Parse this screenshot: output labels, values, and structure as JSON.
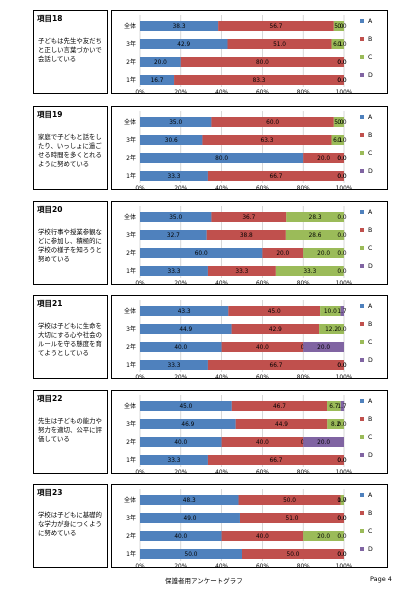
{
  "footer": {
    "title": "保護者用アンケートグラフ",
    "page": "Page 4"
  },
  "colors": {
    "A": "#4f81bd",
    "B": "#c0504d",
    "C": "#9bbb59",
    "D": "#8064a2"
  },
  "rows": [
    "全体",
    "3年",
    "2年",
    "1年"
  ],
  "x_ticks": [
    "0%",
    "20%",
    "40%",
    "60%",
    "80%",
    "100%"
  ],
  "legend": [
    "A",
    "B",
    "C",
    "D"
  ],
  "questions": [
    {
      "num": "項目18",
      "text": "子どもは先生や友だちと正しい言葉づかいで会話している"
    },
    {
      "num": "項目19",
      "text": "家庭で子どもと話をしたり、いっしょに過ごせる時間を多くとれるように努めている"
    },
    {
      "num": "項目20",
      "text": "学校行事や授業参観などに参加し、積極的に学校の様子を知ろうと努めている"
    },
    {
      "num": "項目21",
      "text": "学校は子どもに生命を大切にする心や社会のルールを守る態度を育てようとしている"
    },
    {
      "num": "項目22",
      "text": "先生は子どもの能力や努力を適切、公平に評価している"
    },
    {
      "num": "項目23",
      "text": "学校は子どもに基礎的な学力が身につくように努めている"
    }
  ],
  "chart_data": [
    {
      "type": "bar",
      "orientation": "horizontal",
      "stacked": true,
      "categories": [
        "全体",
        "3年",
        "2年",
        "1年"
      ],
      "xlim": [
        0,
        100
      ],
      "series": [
        {
          "name": "A",
          "values": [
            38.3,
            42.9,
            20.0,
            16.7
          ]
        },
        {
          "name": "B",
          "values": [
            56.7,
            51.0,
            80.0,
            83.3
          ]
        },
        {
          "name": "C",
          "values": [
            5.0,
            6.1,
            0.0,
            0.0
          ]
        },
        {
          "name": "D",
          "values": [
            0.0,
            0.0,
            0.0,
            0.0
          ]
        }
      ]
    },
    {
      "type": "bar",
      "orientation": "horizontal",
      "stacked": true,
      "categories": [
        "全体",
        "3年",
        "2年",
        "1年"
      ],
      "xlim": [
        0,
        100
      ],
      "series": [
        {
          "name": "A",
          "values": [
            35.0,
            30.6,
            80.0,
            33.3
          ]
        },
        {
          "name": "B",
          "values": [
            60.0,
            63.3,
            20.0,
            66.7
          ]
        },
        {
          "name": "C",
          "values": [
            5.0,
            6.1,
            0.0,
            0.0
          ]
        },
        {
          "name": "D",
          "values": [
            0.0,
            0.0,
            0.0,
            0.0
          ]
        }
      ]
    },
    {
      "type": "bar",
      "orientation": "horizontal",
      "stacked": true,
      "categories": [
        "全体",
        "3年",
        "2年",
        "1年"
      ],
      "xlim": [
        0,
        100
      ],
      "series": [
        {
          "name": "A",
          "values": [
            35.0,
            32.7,
            60.0,
            33.3
          ]
        },
        {
          "name": "B",
          "values": [
            36.7,
            38.8,
            20.0,
            33.3
          ]
        },
        {
          "name": "C",
          "values": [
            28.3,
            28.6,
            20.0,
            33.3
          ]
        },
        {
          "name": "D",
          "values": [
            0.0,
            0.0,
            0.0,
            0.0
          ]
        }
      ]
    },
    {
      "type": "bar",
      "orientation": "horizontal",
      "stacked": true,
      "categories": [
        "全体",
        "3年",
        "2年",
        "1年"
      ],
      "xlim": [
        0,
        100
      ],
      "series": [
        {
          "name": "A",
          "values": [
            43.3,
            44.9,
            40.0,
            33.3
          ]
        },
        {
          "name": "B",
          "values": [
            45.0,
            42.9,
            40.0,
            66.7
          ]
        },
        {
          "name": "C",
          "values": [
            10.0,
            12.2,
            0.0,
            0.0
          ]
        },
        {
          "name": "D",
          "values": [
            1.7,
            0.0,
            20.0,
            0.0
          ]
        }
      ]
    },
    {
      "type": "bar",
      "orientation": "horizontal",
      "stacked": true,
      "categories": [
        "全体",
        "3年",
        "2年",
        "1年"
      ],
      "xlim": [
        0,
        100
      ],
      "series": [
        {
          "name": "A",
          "values": [
            45.0,
            46.9,
            40.0,
            33.3
          ]
        },
        {
          "name": "B",
          "values": [
            46.7,
            44.9,
            40.0,
            66.7
          ]
        },
        {
          "name": "C",
          "values": [
            6.7,
            8.2,
            0.0,
            0.0
          ]
        },
        {
          "name": "D",
          "values": [
            1.7,
            0.0,
            20.0,
            0.0
          ]
        }
      ]
    },
    {
      "type": "bar",
      "orientation": "horizontal",
      "stacked": true,
      "categories": [
        "全体",
        "3年",
        "2年",
        "1年"
      ],
      "xlim": [
        0,
        100
      ],
      "series": [
        {
          "name": "A",
          "values": [
            48.3,
            49.0,
            40.0,
            50.0
          ]
        },
        {
          "name": "B",
          "values": [
            50.0,
            51.0,
            40.0,
            50.0
          ]
        },
        {
          "name": "C",
          "values": [
            1.7,
            0.0,
            20.0,
            0.0
          ]
        },
        {
          "name": "D",
          "values": [
            0.0,
            0.0,
            0.0,
            0.0
          ]
        }
      ]
    }
  ]
}
